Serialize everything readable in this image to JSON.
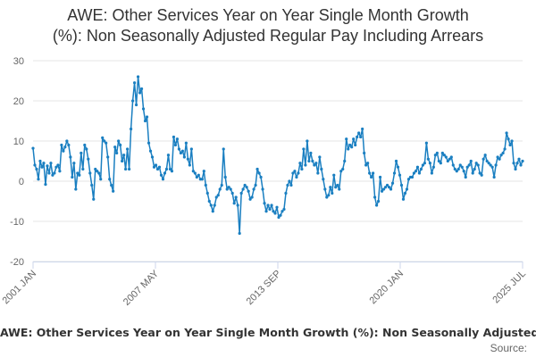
{
  "chart_data": {
    "type": "line",
    "title": [
      "AWE: Other Services Year on Year Single Month Growth",
      "(%): Non Seasonally Adjusted Regular Pay Including Arrears"
    ],
    "series": [
      {
        "name": "AWE: Other Services Year on Year Single Month Growth (%): Non Seasonally Adjusted Regular Pay Including Arrears",
        "color": "#1a7fc1",
        "x_range": [
          "2001-01",
          "2025-07"
        ],
        "values": [
          8.2,
          4.0,
          3.0,
          0.5,
          5.0,
          3.5,
          4.5,
          -0.8,
          3.8,
          2.0,
          4.5,
          1.5,
          2.0,
          3.5,
          4.0,
          2.5,
          9.0,
          7.5,
          8.5,
          10.0,
          9.0,
          6.0,
          1.0,
          4.5,
          -2.0,
          2.0,
          1.5,
          7.0,
          3.0,
          9.0,
          8.0,
          5.5,
          2.0,
          -1.0,
          -4.5,
          3.0,
          2.5,
          2.0,
          0.5,
          10.8,
          10.0,
          9.5,
          6.0,
          0.5,
          -1.0,
          -2.5,
          8.5,
          7.0,
          10.0,
          9.0,
          5.0,
          6.5,
          3.0,
          8.0,
          3.0,
          13.0,
          20.0,
          24.5,
          19.0,
          26.0,
          22.0,
          23.0,
          18.0,
          15.0,
          16.0,
          9.5,
          7.5,
          6.0,
          3.5,
          4.0,
          3.0,
          3.5,
          1.5,
          0.5,
          2.0,
          3.0,
          6.5,
          3.0,
          2.5,
          11.0,
          9.0,
          10.5,
          8.0,
          7.0,
          7.5,
          6.0,
          9.5,
          5.5,
          4.0,
          8.0,
          2.5,
          2.0,
          1.0,
          1.5,
          0.5,
          0.5,
          2.5,
          -1.0,
          -3.0,
          -5.0,
          -6.0,
          -7.5,
          -6.0,
          -4.0,
          -3.5,
          -2.0,
          -1.0,
          8.0,
          1.0,
          -2.0,
          -1.5,
          -2.0,
          -3.0,
          -5.5,
          -4.0,
          -6.0,
          -13.0,
          -3.0,
          -2.0,
          -1.0,
          -1.5,
          -2.5,
          -4.5,
          -4.0,
          -2.0,
          -1.0,
          3.0,
          2.0,
          1.0,
          -2.0,
          -5.5,
          -7.5,
          -6.0,
          -7.0,
          -6.0,
          -7.5,
          -8.0,
          -6.5,
          -9.0,
          -8.5,
          -7.5,
          -7.0,
          -3.0,
          -1.0,
          0.0,
          -1.0,
          2.0,
          2.5,
          1.0,
          2.0,
          4.5,
          3.0,
          8.0,
          4.0,
          10.0,
          5.0,
          7.0,
          5.0,
          4.0,
          4.5,
          2.0,
          6.0,
          3.0,
          0.5,
          -2.0,
          -4.0,
          -3.5,
          -1.5,
          -3.0,
          1.5,
          -1.5,
          -1.0,
          -2.0,
          2.5,
          3.0,
          5.0,
          10.5,
          8.0,
          9.0,
          8.5,
          10.5,
          9.0,
          11.0,
          12.0,
          11.0,
          13.0,
          7.0,
          4.0,
          4.5,
          2.0,
          1.0,
          2.0,
          -4.0,
          -6.0,
          -5.0,
          1.0,
          -2.5,
          -2.0,
          -1.5,
          -1.0,
          -1.5,
          -2.0,
          -0.5,
          2.0,
          5.0,
          3.5,
          1.5,
          -1.0,
          -4.5,
          -3.0,
          -2.0,
          0.5,
          1.0,
          1.0,
          2.0,
          2.5,
          3.5,
          2.0,
          3.0,
          4.0,
          4.5,
          9.5,
          5.5,
          4.5,
          2.0,
          3.5,
          6.5,
          7.0,
          5.0,
          4.5,
          7.0,
          6.5,
          6.0,
          5.0,
          5.5,
          6.0,
          4.0,
          3.0,
          2.5,
          3.0,
          4.0,
          3.5,
          2.5,
          1.0,
          3.5,
          4.0,
          5.0,
          2.0,
          3.0,
          4.5,
          4.0,
          2.0,
          1.5,
          5.5,
          6.5,
          5.0,
          4.5,
          4.0,
          3.5,
          1.0,
          4.0,
          6.0,
          5.5,
          6.5,
          7.0,
          8.0,
          12.0,
          10.5,
          9.0,
          10.0,
          4.5,
          3.0,
          4.5,
          5.5,
          4.0,
          5.0
        ]
      }
    ],
    "x_tick_labels": [
      "2001 JAN",
      "2007 MAY",
      "2013 SEP",
      "2020 JAN",
      "2025 JUL"
    ],
    "y_ticks": [
      -20,
      -10,
      0,
      10,
      20,
      30
    ],
    "ylim": [
      -20,
      30
    ],
    "grid": true,
    "legend_position": "bottom"
  },
  "legend_text": "AWE: Other Services Year on Year Single Month Growth (%): Non Seasonally Adjusted Regular Pay Including Arrears",
  "source_label": "Source:"
}
